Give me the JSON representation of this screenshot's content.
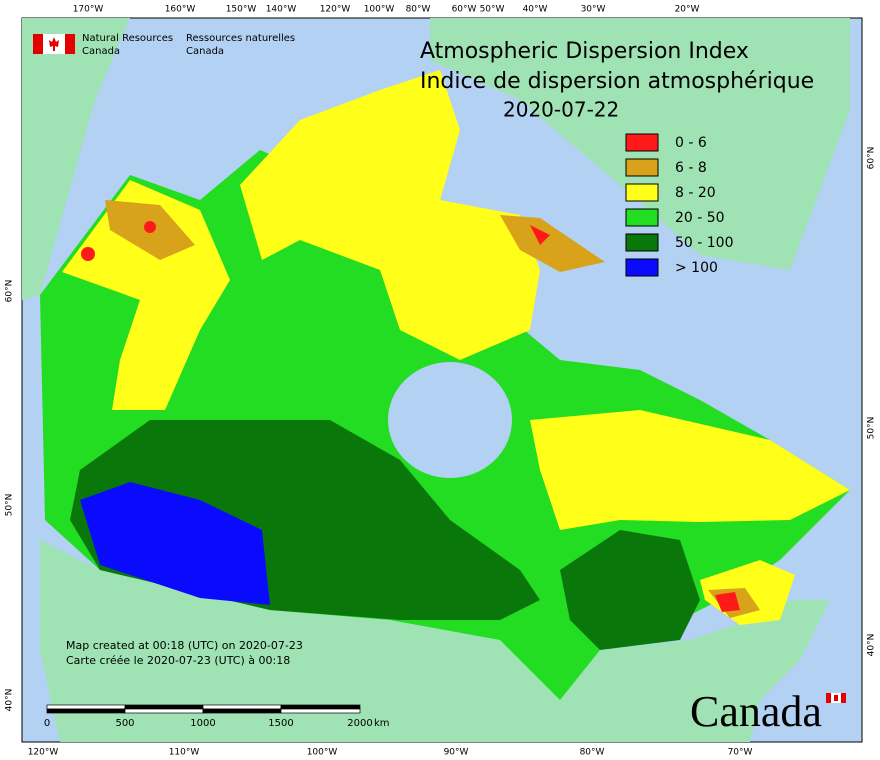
{
  "agency": {
    "en": [
      "Natural Resources",
      "Canada"
    ],
    "fr": [
      "Ressources naturelles",
      "Canada"
    ]
  },
  "title": {
    "lines": [
      "Atmospheric Dispersion Index",
      "Indice de dispersion atmosphérique"
    ],
    "date": "2020-07-22"
  },
  "legend": [
    {
      "label": "0 - 6",
      "color": "#ff1a1a"
    },
    {
      "label": "6 - 8",
      "color": "#d9a21b"
    },
    {
      "label": "8 - 20",
      "color": "#ffff1a"
    },
    {
      "label": "20 - 50",
      "color": "#22dd22"
    },
    {
      "label": "50 - 100",
      "color": "#0a770a"
    },
    {
      "label": "> 100",
      "color": "#0a0aff"
    }
  ],
  "graticule": {
    "top": [
      "170°W",
      "160°W",
      "150°W",
      "140°W",
      "120°W",
      "100°W",
      "80°W",
      "60°W",
      "50°W",
      "40°W",
      "30°W",
      "20°W"
    ],
    "bottom": [
      "120°W",
      "110°W",
      "100°W",
      "90°W",
      "80°W",
      "70°W"
    ],
    "left": [
      "60°N",
      "50°N",
      "40°N"
    ],
    "right": [
      "60°N",
      "50°N",
      "40°N"
    ]
  },
  "scale_bar": {
    "labels": [
      "0",
      "500",
      "1000",
      "1500",
      "2000"
    ],
    "unit": "km"
  },
  "notes": [
    "Map created at 00:18 (UTC) on 2020-07-23",
    "Carte créée le 2020-07-23 (UTC) à 00:18"
  ],
  "wordmark": "Canada"
}
